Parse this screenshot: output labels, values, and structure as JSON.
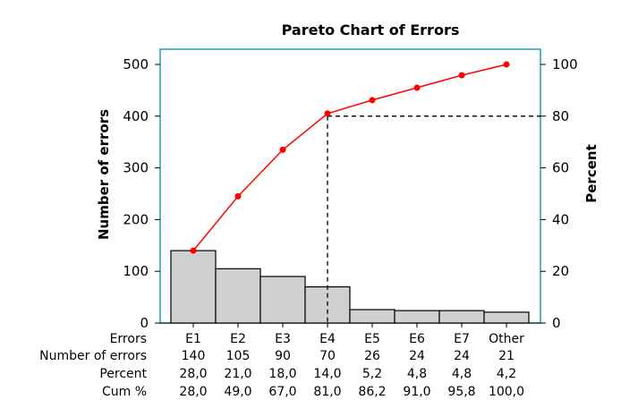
{
  "chart_data": {
    "type": "bar",
    "title": "Pareto Chart of Errors",
    "ylabel": "Number of errors",
    "y2label": "Percent",
    "categories": [
      "E1",
      "E2",
      "E3",
      "E4",
      "E5",
      "E6",
      "E7",
      "Other"
    ],
    "series": [
      {
        "name": "Number of errors",
        "type": "bar",
        "axis": "left",
        "values": [
          140,
          105,
          90,
          70,
          26,
          24,
          24,
          21
        ]
      },
      {
        "name": "Cum %",
        "type": "line",
        "axis": "right",
        "values": [
          28.0,
          49.0,
          67.0,
          81.0,
          86.2,
          91.0,
          95.8,
          100.0
        ]
      }
    ],
    "ylim": [
      0,
      500
    ],
    "y2lim": [
      0,
      100
    ],
    "yticks": [
      "0",
      "100",
      "200",
      "300",
      "400",
      "500"
    ],
    "y2ticks": [
      "0",
      "20",
      "40",
      "60",
      "80",
      "100"
    ],
    "reference_line": {
      "percent": 80,
      "category": "E4",
      "style": "dashed"
    },
    "grid": false,
    "table": {
      "row_labels": [
        "Errors",
        "Number of errors",
        "Percent",
        "Cum %"
      ],
      "errors": [
        "E1",
        "E2",
        "E3",
        "E4",
        "E5",
        "E6",
        "E7",
        "Other"
      ],
      "number_of_errors": [
        "140",
        "105",
        "90",
        "70",
        "26",
        "24",
        "24",
        "21"
      ],
      "percent": [
        "28,0",
        "21,0",
        "18,0",
        "14,0",
        "5,2",
        "4,8",
        "4,8",
        "4,2"
      ],
      "cum_percent": [
        "28,0",
        "49,0",
        "67,0",
        "81,0",
        "86,2",
        "91,0",
        "95,8",
        "100,0"
      ]
    },
    "colors": {
      "bar_fill": "#d0d0d0",
      "bar_stroke": "#000000",
      "line": "#ff0000",
      "frame": "#1f9fbf",
      "reference": "#000000"
    }
  }
}
